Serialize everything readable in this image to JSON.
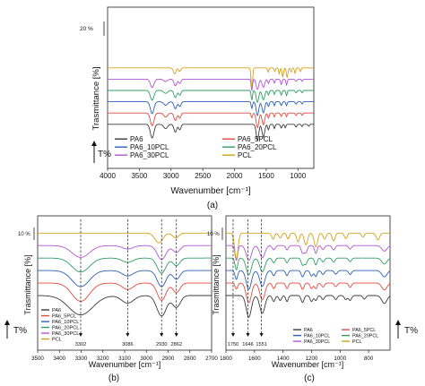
{
  "panel_labels": [
    "(a)",
    "(b)",
    "(c)"
  ],
  "chart_data": [
    {
      "type": "line",
      "panel": "(a)",
      "xlabel": "Wavenumber [cm⁻¹]",
      "ylabel": "Trasmittance [%]",
      "tmark": "T%",
      "scale_note": "20 %",
      "xlim": [
        4000,
        750
      ],
      "x_reversed": true,
      "xticks": [
        4000,
        3500,
        3000,
        2500,
        2000,
        1500,
        1000
      ],
      "legend": {
        "placement": "bottom-left",
        "columns": 2
      },
      "series": [
        {
          "name": "PA6",
          "color": "#3a3a3a",
          "offset": 0.8,
          "dips": [
            [
              3298,
              0.7,
              28
            ],
            [
              3085,
              0.22,
              30
            ],
            [
              2932,
              0.4,
              22
            ],
            [
              2862,
              0.28,
              18
            ],
            [
              1638,
              0.8,
              20
            ],
            [
              1545,
              0.65,
              20
            ],
            [
              1465,
              0.28,
              12
            ],
            [
              1372,
              0.22,
              10
            ],
            [
              1263,
              0.2,
              12
            ],
            [
              1200,
              0.18,
              10
            ],
            [
              1030,
              0.14,
              12
            ],
            [
              935,
              0.12,
              10
            ],
            [
              830,
              0.1,
              10
            ]
          ]
        },
        {
          "name": "PA6_5PCL",
          "color": "#e8483f",
          "offset": 1.7,
          "dips": [
            [
              3298,
              0.65,
              28
            ],
            [
              3085,
              0.2,
              30
            ],
            [
              2932,
              0.38,
              22
            ],
            [
              2862,
              0.26,
              18
            ],
            [
              1727,
              0.25,
              10
            ],
            [
              1638,
              0.75,
              20
            ],
            [
              1545,
              0.6,
              20
            ],
            [
              1465,
              0.26,
              12
            ],
            [
              1372,
              0.2,
              10
            ],
            [
              1263,
              0.18,
              12
            ],
            [
              1180,
              0.18,
              10
            ],
            [
              1030,
              0.12,
              12
            ],
            [
              935,
              0.12,
              10
            ]
          ]
        },
        {
          "name": "PA6_10PCL",
          "color": "#2a5fb8",
          "offset": 2.6,
          "dips": [
            [
              3298,
              0.6,
              28
            ],
            [
              3085,
              0.18,
              30
            ],
            [
              2932,
              0.36,
              22
            ],
            [
              2862,
              0.24,
              18
            ],
            [
              1727,
              0.35,
              10
            ],
            [
              1638,
              0.7,
              20
            ],
            [
              1545,
              0.56,
              20
            ],
            [
              1465,
              0.24,
              12
            ],
            [
              1372,
              0.2,
              10
            ],
            [
              1263,
              0.2,
              12
            ],
            [
              1180,
              0.2,
              10
            ],
            [
              1030,
              0.12,
              12
            ],
            [
              935,
              0.12,
              10
            ]
          ]
        },
        {
          "name": "PA6_20PCL",
          "color": "#2e9e63",
          "offset": 3.5,
          "dips": [
            [
              3298,
              0.5,
              28
            ],
            [
              3085,
              0.15,
              30
            ],
            [
              2932,
              0.36,
              22
            ],
            [
              2862,
              0.24,
              18
            ],
            [
              1727,
              0.5,
              10
            ],
            [
              1638,
              0.6,
              20
            ],
            [
              1545,
              0.48,
              20
            ],
            [
              1465,
              0.24,
              12
            ],
            [
              1372,
              0.2,
              10
            ],
            [
              1263,
              0.24,
              12
            ],
            [
              1180,
              0.26,
              10
            ],
            [
              1030,
              0.12,
              12
            ],
            [
              935,
              0.12,
              10
            ]
          ]
        },
        {
          "name": "PA6_30PCL",
          "color": "#b455d4",
          "offset": 4.4,
          "dips": [
            [
              3298,
              0.42,
              28
            ],
            [
              3085,
              0.12,
              30
            ],
            [
              2932,
              0.34,
              22
            ],
            [
              2862,
              0.22,
              18
            ],
            [
              1727,
              0.6,
              10
            ],
            [
              1638,
              0.52,
              20
            ],
            [
              1545,
              0.42,
              20
            ],
            [
              1465,
              0.22,
              12
            ],
            [
              1372,
              0.2,
              10
            ],
            [
              1263,
              0.28,
              12
            ],
            [
              1180,
              0.3,
              10
            ],
            [
              1030,
              0.12,
              12
            ],
            [
              935,
              0.12,
              10
            ]
          ]
        },
        {
          "name": "PCL",
          "color": "#d4a017",
          "offset": 5.3,
          "dips": [
            [
              2943,
              0.3,
              20
            ],
            [
              2865,
              0.18,
              16
            ],
            [
              1727,
              1.0,
              12
            ],
            [
              1470,
              0.22,
              10
            ],
            [
              1365,
              0.2,
              10
            ],
            [
              1295,
              0.3,
              10
            ],
            [
              1240,
              0.45,
              12
            ],
            [
              1170,
              0.5,
              12
            ],
            [
              1108,
              0.22,
              10
            ],
            [
              1045,
              0.28,
              10
            ],
            [
              960,
              0.18,
              10
            ],
            [
              735,
              0.18,
              10
            ]
          ]
        }
      ]
    },
    {
      "type": "line",
      "panel": "(b)",
      "xlabel": "Wavenumber [cm⁻¹]",
      "ylabel": "Trasmittance [%]",
      "tmark": "T%",
      "scale_note": "10 %",
      "xlim": [
        3500,
        2700
      ],
      "x_reversed": true,
      "xticks": [
        3500,
        3400,
        3300,
        3200,
        3100,
        3000,
        2900,
        2800,
        2700
      ],
      "marked_peaks": [
        3302,
        3086,
        2930,
        2862
      ],
      "legend": {
        "placement": "bottom-left",
        "columns": 1
      },
      "series": [
        {
          "name": "PA6",
          "color": "#3a3a3a",
          "offset": 0.0,
          "dips": [
            [
              3302,
              0.9,
              55
            ],
            [
              3086,
              0.35,
              28
            ],
            [
              2930,
              0.95,
              22
            ],
            [
              2862,
              0.55,
              18
            ]
          ]
        },
        {
          "name": "PA6_5PCL",
          "color": "#e8483f",
          "offset": 0.9,
          "dips": [
            [
              3302,
              0.85,
              40
            ],
            [
              3086,
              0.3,
              25
            ],
            [
              2930,
              0.8,
              20
            ],
            [
              2862,
              0.45,
              16
            ]
          ]
        },
        {
          "name": "PA6_10PCL",
          "color": "#2a5fb8",
          "offset": 1.8,
          "dips": [
            [
              3302,
              0.75,
              40
            ],
            [
              3086,
              0.25,
              25
            ],
            [
              2930,
              0.75,
              20
            ],
            [
              2862,
              0.4,
              16
            ]
          ]
        },
        {
          "name": "PA6_20PCL",
          "color": "#2e9e63",
          "offset": 2.7,
          "dips": [
            [
              3302,
              0.65,
              40
            ],
            [
              3086,
              0.2,
              25
            ],
            [
              2930,
              0.7,
              20
            ],
            [
              2862,
              0.35,
              16
            ]
          ]
        },
        {
          "name": "PA6_30PCL",
          "color": "#b455d4",
          "offset": 3.6,
          "dips": [
            [
              3302,
              0.55,
              40
            ],
            [
              3086,
              0.16,
              25
            ],
            [
              2930,
              0.65,
              20
            ],
            [
              2862,
              0.32,
              16
            ]
          ]
        },
        {
          "name": "PCL",
          "color": "#d4a017",
          "offset": 4.5,
          "dips": [
            [
              2943,
              0.45,
              18
            ],
            [
              2865,
              0.22,
              14
            ]
          ]
        }
      ]
    },
    {
      "type": "line",
      "panel": "(c)",
      "xlabel": "Wavenumber [cm⁻¹]",
      "ylabel": "Trasmittance [%]",
      "tmark": "T%",
      "scale_note": "10 %",
      "xlim": [
        1800,
        650
      ],
      "x_reversed": true,
      "xticks": [
        1800,
        1600,
        1400,
        1200,
        1000,
        800
      ],
      "marked_peaks": [
        1750,
        1646,
        1551
      ],
      "legend": {
        "placement": "bottom",
        "columns": 2
      },
      "series": [
        {
          "name": "PA6",
          "color": "#3a3a3a",
          "offset": 0.0,
          "dips": [
            [
              1640,
              1.1,
              18
            ],
            [
              1545,
              0.9,
              18
            ],
            [
              1465,
              0.3,
              10
            ],
            [
              1420,
              0.25,
              10
            ],
            [
              1372,
              0.3,
              9
            ],
            [
              1263,
              0.35,
              10
            ],
            [
              1200,
              0.3,
              10
            ],
            [
              1170,
              0.25,
              9
            ],
            [
              1120,
              0.2,
              10
            ],
            [
              1030,
              0.2,
              10
            ],
            [
              960,
              0.2,
              10
            ],
            [
              930,
              0.25,
              10
            ],
            [
              830,
              0.18,
              10
            ],
            [
              690,
              0.4,
              18
            ]
          ]
        },
        {
          "name": "PA6_5PCL",
          "color": "#e8483f",
          "offset": 0.9,
          "dips": [
            [
              1727,
              0.3,
              9
            ],
            [
              1640,
              1.0,
              18
            ],
            [
              1545,
              0.85,
              18
            ],
            [
              1465,
              0.28,
              10
            ],
            [
              1372,
              0.28,
              9
            ],
            [
              1263,
              0.32,
              10
            ],
            [
              1200,
              0.28,
              10
            ],
            [
              1170,
              0.28,
              9
            ],
            [
              1120,
              0.2,
              10
            ],
            [
              1030,
              0.18,
              10
            ],
            [
              930,
              0.22,
              10
            ],
            [
              690,
              0.35,
              18
            ]
          ]
        },
        {
          "name": "PA6_10PCL",
          "color": "#2a5fb8",
          "offset": 1.8,
          "dips": [
            [
              1727,
              0.45,
              9
            ],
            [
              1640,
              0.95,
              18
            ],
            [
              1545,
              0.8,
              18
            ],
            [
              1465,
              0.26,
              10
            ],
            [
              1372,
              0.26,
              9
            ],
            [
              1263,
              0.32,
              10
            ],
            [
              1200,
              0.28,
              10
            ],
            [
              1170,
              0.3,
              9
            ],
            [
              1120,
              0.2,
              10
            ],
            [
              1030,
              0.18,
              10
            ],
            [
              930,
              0.2,
              10
            ],
            [
              690,
              0.32,
              18
            ]
          ]
        },
        {
          "name": "PA6_20PCL",
          "color": "#2e9e63",
          "offset": 2.7,
          "dips": [
            [
              1727,
              0.6,
              9
            ],
            [
              1640,
              0.85,
              18
            ],
            [
              1545,
              0.7,
              18
            ],
            [
              1465,
              0.24,
              10
            ],
            [
              1372,
              0.24,
              9
            ],
            [
              1263,
              0.35,
              10
            ],
            [
              1240,
              0.3,
              10
            ],
            [
              1170,
              0.35,
              9
            ],
            [
              1120,
              0.2,
              10
            ],
            [
              1045,
              0.2,
              10
            ],
            [
              930,
              0.18,
              10
            ],
            [
              690,
              0.3,
              18
            ]
          ]
        },
        {
          "name": "PA6_30PCL",
          "color": "#b455d4",
          "offset": 3.6,
          "dips": [
            [
              1727,
              0.75,
              9
            ],
            [
              1640,
              0.75,
              18
            ],
            [
              1545,
              0.62,
              18
            ],
            [
              1465,
              0.22,
              10
            ],
            [
              1372,
              0.22,
              9
            ],
            [
              1263,
              0.38,
              10
            ],
            [
              1240,
              0.35,
              10
            ],
            [
              1170,
              0.4,
              9
            ],
            [
              1120,
              0.2,
              10
            ],
            [
              1045,
              0.22,
              10
            ],
            [
              930,
              0.18,
              10
            ],
            [
              690,
              0.28,
              18
            ]
          ]
        },
        {
          "name": "PCL",
          "color": "#d4a017",
          "offset": 4.5,
          "dips": [
            [
              1727,
              1.3,
              12
            ],
            [
              1470,
              0.3,
              10
            ],
            [
              1420,
              0.25,
              10
            ],
            [
              1365,
              0.3,
              9
            ],
            [
              1295,
              0.45,
              10
            ],
            [
              1240,
              0.6,
              12
            ],
            [
              1170,
              0.7,
              12
            ],
            [
              1108,
              0.3,
              10
            ],
            [
              1045,
              0.4,
              10
            ],
            [
              960,
              0.28,
              10
            ],
            [
              840,
              0.2,
              10
            ],
            [
              735,
              0.35,
              12
            ]
          ]
        }
      ]
    }
  ]
}
